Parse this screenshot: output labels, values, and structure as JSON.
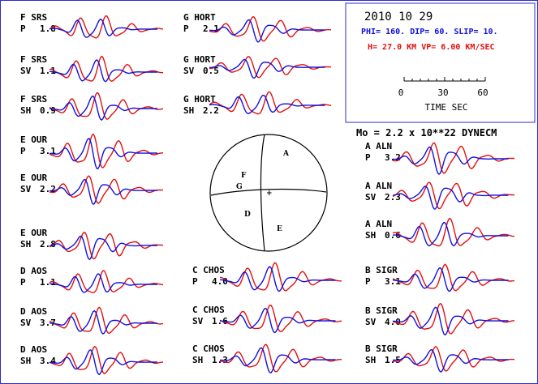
{
  "info": {
    "date": "2010 10 29",
    "params_blue": "PHI= 160. DIP= 60. SLIP=  10.",
    "params_red": "H= 27.0 KM  VP= 6.00 KM/SEC",
    "scale_ticks": [
      "0",
      "30",
      "60"
    ],
    "scale_label": "TIME  SEC",
    "moment": "Mo =  2.2 x 10**22 DYNECM"
  },
  "beachball": {
    "labels": {
      "A": "A",
      "D": "D",
      "E": "E",
      "F": "F",
      "G": "G",
      "plus": "+"
    }
  },
  "colors": {
    "observed": "#1010e0",
    "synthetic": "#e01010",
    "frame": "#2b2bd0"
  },
  "traces": [
    {
      "station": "F SRS",
      "comp": "P",
      "amp": "1.8"
    },
    {
      "station": "F SRS",
      "comp": "SV",
      "amp": "1.1"
    },
    {
      "station": "F SRS",
      "comp": "SH",
      "amp": "0.9"
    },
    {
      "station": "E OUR",
      "comp": "P",
      "amp": "3.1"
    },
    {
      "station": "E OUR",
      "comp": "SV",
      "amp": "2.2"
    },
    {
      "station": "E OUR",
      "comp": "SH",
      "amp": "2.8"
    },
    {
      "station": "D AOS",
      "comp": "P",
      "amp": "1.1"
    },
    {
      "station": "D AOS",
      "comp": "SV",
      "amp": "3.7"
    },
    {
      "station": "D AOS",
      "comp": "SH",
      "amp": "3.4"
    },
    {
      "station": "G HORT",
      "comp": "P",
      "amp": "2.1"
    },
    {
      "station": "G HORT",
      "comp": "SV",
      "amp": "0.5"
    },
    {
      "station": "G HORT",
      "comp": "SH",
      "amp": "2.2"
    },
    {
      "station": "C CHOS",
      "comp": "P",
      "amp": "4.0"
    },
    {
      "station": "C CHOS",
      "comp": "SV",
      "amp": "1.6"
    },
    {
      "station": "C CHOS",
      "comp": "SH",
      "amp": "1.3"
    },
    {
      "station": "A ALN",
      "comp": "P",
      "amp": "3.2"
    },
    {
      "station": "A ALN",
      "comp": "SV",
      "amp": "2.3"
    },
    {
      "station": "A ALN",
      "comp": "SH",
      "amp": "0.6"
    },
    {
      "station": "B SIGR",
      "comp": "P",
      "amp": "3.1"
    },
    {
      "station": "B SIGR",
      "comp": "SV",
      "amp": "4.0"
    },
    {
      "station": "B SIGR",
      "comp": "SH",
      "amp": "1.5"
    }
  ]
}
